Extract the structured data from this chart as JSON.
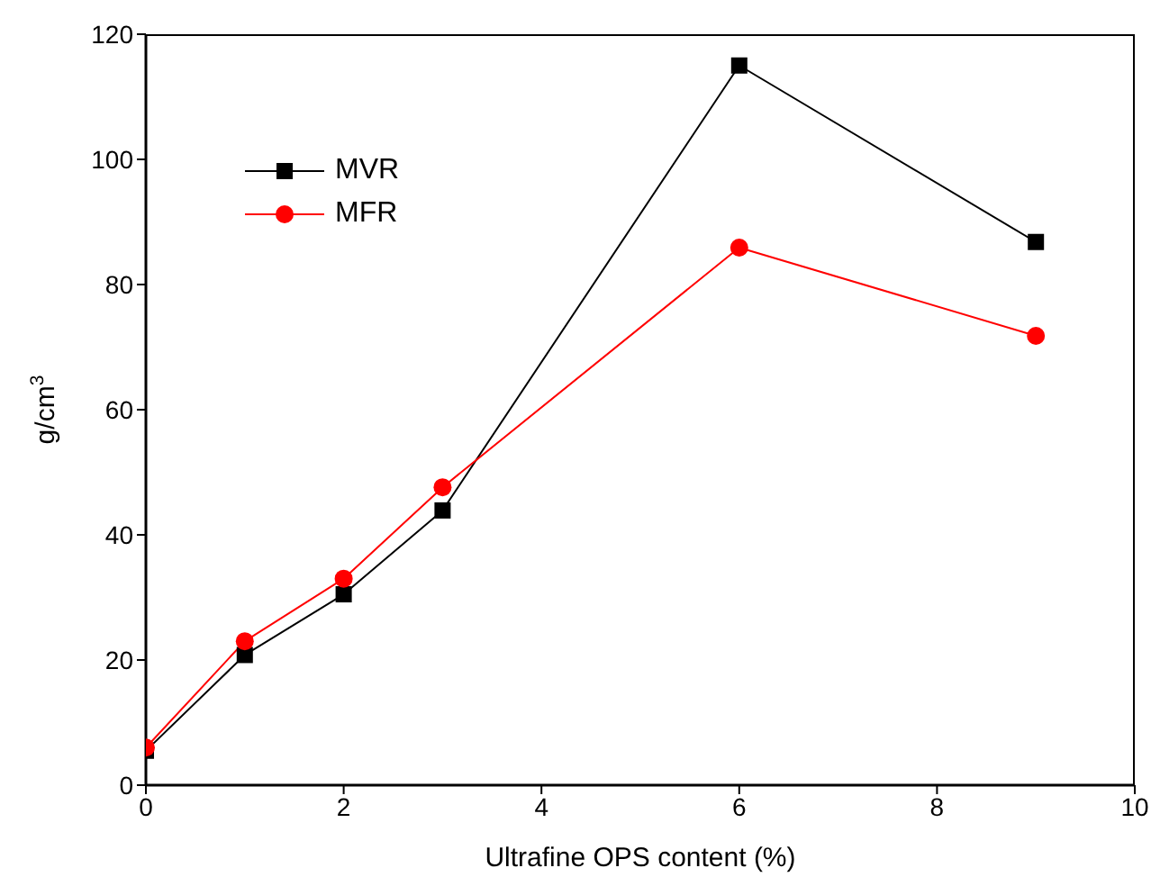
{
  "chart_data": {
    "type": "line",
    "xlabel": "Ultrafine OPS content (%)",
    "ylabel": "g/cm$^{3}$",
    "x": [
      0,
      1,
      2,
      3,
      6,
      9
    ],
    "series": [
      {
        "name": "MVR",
        "color": "#000000",
        "marker": "square",
        "values": [
          5.5,
          20.8,
          30.5,
          43.9,
          115,
          86.8
        ]
      },
      {
        "name": "MFR",
        "color": "#ff0000",
        "marker": "circle",
        "values": [
          6,
          23,
          33,
          47.6,
          85.9,
          71.8
        ]
      }
    ],
    "xlim": [
      0,
      10
    ],
    "xticks": [
      0,
      2,
      4,
      6,
      8,
      10
    ],
    "ylim": [
      0,
      120
    ],
    "yticks": [
      0,
      20,
      40,
      60,
      80,
      100,
      120
    ],
    "grid": false,
    "legend": "top left"
  }
}
